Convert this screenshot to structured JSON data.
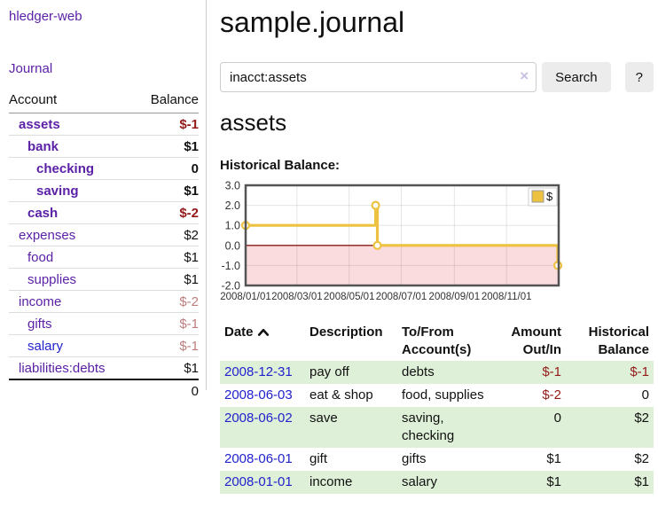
{
  "sidebar": {
    "brand": "hledger-web",
    "journal_link": "Journal",
    "accounts": {
      "header": {
        "account": "Account",
        "balance": "Balance"
      },
      "rows": [
        {
          "name": "assets",
          "indent": 0,
          "bold": true,
          "link_color": "purple",
          "balance": "$-1",
          "balance_class": "neg-strong"
        },
        {
          "name": "bank",
          "indent": 1,
          "bold": true,
          "link_color": "purple",
          "balance": "$1",
          "balance_class": ""
        },
        {
          "name": "checking",
          "indent": 2,
          "bold": true,
          "link_color": "purple",
          "balance": "0",
          "balance_class": ""
        },
        {
          "name": "saving",
          "indent": 2,
          "bold": true,
          "link_color": "purple",
          "balance": "$1",
          "balance_class": ""
        },
        {
          "name": "cash",
          "indent": 1,
          "bold": true,
          "link_color": "purple",
          "balance": "$-2",
          "balance_class": "neg-strong"
        },
        {
          "name": "expenses",
          "indent": 0,
          "bold": false,
          "link_color": "purple",
          "balance": "$2",
          "balance_class": ""
        },
        {
          "name": "food",
          "indent": 1,
          "bold": false,
          "link_color": "purple",
          "balance": "$1",
          "balance_class": ""
        },
        {
          "name": "supplies",
          "indent": 1,
          "bold": false,
          "link_color": "purple",
          "balance": "$1",
          "balance_class": ""
        },
        {
          "name": "income",
          "indent": 0,
          "bold": false,
          "link_color": "purple",
          "balance": "$-2",
          "balance_class": "neg-muted"
        },
        {
          "name": "gifts",
          "indent": 1,
          "bold": false,
          "link_color": "purple",
          "balance": "$-1",
          "balance_class": "neg-muted"
        },
        {
          "name": "salary",
          "indent": 1,
          "bold": false,
          "link_color": "blue",
          "balance": "$-1",
          "balance_class": "neg-muted"
        },
        {
          "name": "liabilities:debts",
          "indent": 0,
          "bold": false,
          "link_color": "purple",
          "balance": "$1",
          "balance_class": ""
        }
      ],
      "total": "0"
    }
  },
  "main": {
    "title": "sample.journal",
    "search": {
      "query": "inacct:assets",
      "clear_icon": "×",
      "button_label": "Search",
      "help_label": "?"
    },
    "account_heading": "assets"
  },
  "register": {
    "headers": {
      "date": "Date",
      "sort_icon": "chevron-up",
      "description": "Description",
      "tofrom_line1": "To/From",
      "tofrom_line2": "Account(s)",
      "amount_line1": "Amount",
      "amount_line2": "Out/In",
      "balance_line1": "Historical",
      "balance_line2": "Balance"
    },
    "rows": [
      {
        "date": "2008-12-31",
        "description": "pay off",
        "accounts": "debts",
        "amount": "$-1",
        "amount_negative": true,
        "balance": "$-1",
        "balance_negative": true,
        "highlight": true
      },
      {
        "date": "2008-06-03",
        "description": "eat & shop",
        "accounts": "food, supplies",
        "amount": "$-2",
        "amount_negative": true,
        "balance": "0",
        "balance_negative": false,
        "highlight": false
      },
      {
        "date": "2008-06-02",
        "description": "save",
        "accounts": "saving, checking",
        "amount": "0",
        "amount_negative": false,
        "balance": "$2",
        "balance_negative": false,
        "highlight": true
      },
      {
        "date": "2008-06-01",
        "description": "gift",
        "accounts": "gifts",
        "amount": "$1",
        "amount_negative": false,
        "balance": "$2",
        "balance_negative": false,
        "highlight": false
      },
      {
        "date": "2008-01-01",
        "description": "income",
        "accounts": "salary",
        "amount": "$1",
        "amount_negative": false,
        "balance": "$1",
        "balance_negative": false,
        "highlight": true
      }
    ]
  },
  "chart_data": {
    "type": "line",
    "step": true,
    "title": "Historical Balance:",
    "series": [
      {
        "name": "$",
        "color": "#edc240",
        "points": [
          [
            "2008-01-01",
            1.0
          ],
          [
            "2008-06-01",
            2.0
          ],
          [
            "2008-06-03",
            0.0
          ],
          [
            "2008-12-31",
            -1.0
          ]
        ]
      }
    ],
    "xlim": [
      "2008-01-01",
      "2009-01-01"
    ],
    "ylim": [
      -2,
      3
    ],
    "x_tick_labels": [
      "2008/01/01",
      "2008/03/01",
      "2008/05/01",
      "2008/07/01",
      "2008/09/01",
      "2008/11/01"
    ],
    "y_ticks": [
      3,
      2,
      1,
      0,
      -1,
      -2
    ],
    "y_tick_labels": [
      "3.0",
      "2.0",
      "1.0",
      "0.0",
      "-1.0",
      "-2.0"
    ],
    "legend": {
      "label": "$",
      "position": "top-right"
    },
    "grid": true,
    "colors": {
      "negative_region": "#fbdcde",
      "zero_line": "#8b1a1a",
      "plot_border": "#545454",
      "grid_line": "rgba(0,0,0,0.10)",
      "tick_text": "#333333"
    }
  },
  "colors": {
    "purple_link": "#5b21a6",
    "blue_link": "#2222cc",
    "negative_strong": "#941a1a",
    "negative_muted": "#bd7d7d",
    "row_highlight_green": "#dff0d8",
    "series_yellow": "#edc240"
  }
}
